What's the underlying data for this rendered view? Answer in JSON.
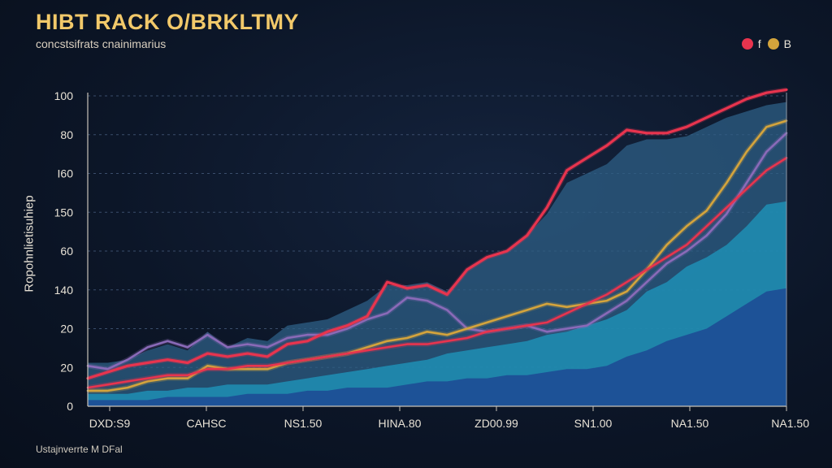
{
  "chart_data": {
    "type": "area",
    "title": "HIBT RACK O/BRKLTMY",
    "subtitle": "concstsifrats cnainimarius",
    "ylabel": "Ropohnlietisuhiep",
    "footer": "Ustajnverrte M DFal",
    "legend": [
      {
        "label": "f",
        "color": "#e8344e"
      },
      {
        "label": "B",
        "color": "#d4a43c"
      }
    ],
    "y_tick_labels": [
      "0",
      "20",
      "20",
      "140",
      "60",
      "150",
      "I60",
      "80",
      "100"
    ],
    "ylim": [
      0,
      100
    ],
    "x_tick_labels": [
      "DXD:S9",
      "CAHSC",
      "NS1.50",
      "HINA.80",
      "ZD00.99",
      "SN1.00",
      "NA1.50",
      "NA1.50"
    ],
    "x": [
      0,
      1,
      2,
      3,
      4,
      5,
      6,
      7,
      8,
      9,
      10,
      11,
      12,
      13,
      14,
      15,
      16,
      17,
      18,
      19,
      20,
      21,
      22,
      23,
      24,
      25,
      26,
      27,
      28,
      29,
      30,
      31,
      32,
      33,
      34,
      35
    ],
    "series": [
      {
        "name": "Dark blue area",
        "kind": "area",
        "color": "#1e4f96",
        "values": [
          2,
          2,
          2,
          2,
          3,
          3,
          3,
          3,
          4,
          4,
          4,
          5,
          5,
          6,
          6,
          6,
          7,
          8,
          8,
          9,
          9,
          10,
          10,
          11,
          12,
          12,
          13,
          16,
          18,
          21,
          23,
          25,
          29,
          33,
          37,
          38
        ]
      },
      {
        "name": "Teal area",
        "kind": "area",
        "color": "#1f8fb5",
        "values": [
          4,
          4,
          4,
          5,
          5,
          6,
          6,
          7,
          7,
          7,
          8,
          9,
          10,
          11,
          12,
          13,
          14,
          15,
          17,
          18,
          19,
          20,
          21,
          23,
          24,
          26,
          28,
          31,
          37,
          40,
          45,
          48,
          52,
          58,
          65,
          66
        ]
      },
      {
        "name": "Upper band",
        "kind": "area",
        "color": "#2d5f86",
        "values": [
          14,
          14,
          15,
          18,
          20,
          18,
          24,
          19,
          22,
          21,
          26,
          27,
          28,
          31,
          34,
          39,
          39,
          40,
          37,
          44,
          48,
          50,
          55,
          62,
          72,
          75,
          78,
          84,
          86,
          86,
          87,
          90,
          93,
          95,
          97,
          98
        ]
      },
      {
        "name": "Purple line",
        "kind": "line",
        "color": "#8a6ab8",
        "values": [
          13,
          12,
          15,
          19,
          21,
          19,
          23,
          19,
          20,
          19,
          22,
          23,
          23,
          25,
          28,
          30,
          35,
          34,
          31,
          25,
          24,
          25,
          26,
          24,
          25,
          26,
          30,
          34,
          40,
          46,
          50,
          55,
          62,
          72,
          82,
          88
        ]
      },
      {
        "name": "Gold line",
        "kind": "line",
        "color": "#d4a43c",
        "values": [
          5,
          5,
          6,
          8,
          9,
          9,
          13,
          12,
          12,
          12,
          14,
          15,
          16,
          17,
          19,
          21,
          22,
          24,
          23,
          25,
          27,
          29,
          31,
          33,
          32,
          33,
          34,
          37,
          44,
          52,
          58,
          63,
          72,
          82,
          90,
          92
        ]
      },
      {
        "name": "Red line",
        "kind": "line",
        "color": "#e8344e",
        "values": [
          6,
          7,
          8,
          9,
          10,
          10,
          12,
          12,
          13,
          13,
          14,
          15,
          16,
          17,
          18,
          19,
          20,
          20,
          21,
          22,
          24,
          25,
          26,
          27,
          30,
          33,
          36,
          40,
          44,
          48,
          52,
          58,
          64,
          70,
          76,
          80
        ]
      },
      {
        "name": "Top red line",
        "kind": "line",
        "color": "#e8344e",
        "values": [
          9,
          11,
          13,
          14,
          15,
          14,
          17,
          16,
          17,
          16,
          20,
          21,
          24,
          26,
          29,
          40,
          38,
          39,
          36,
          44,
          48,
          50,
          55,
          64,
          76,
          80,
          84,
          89,
          88,
          88,
          90,
          93,
          96,
          99,
          101,
          102
        ]
      }
    ]
  }
}
